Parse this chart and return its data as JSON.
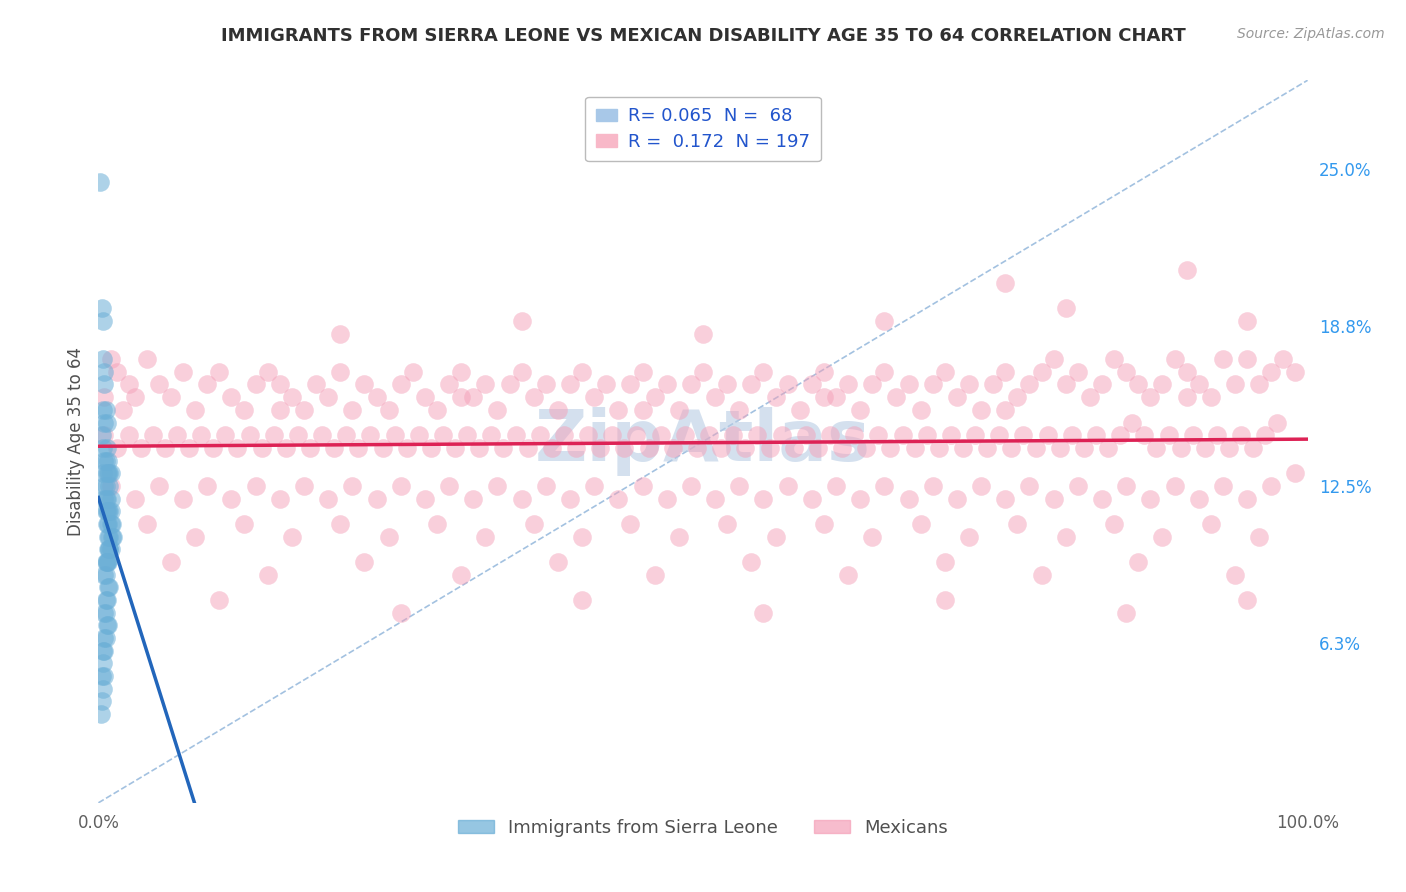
{
  "title": "IMMIGRANTS FROM SIERRA LEONE VS MEXICAN DISABILITY AGE 35 TO 64 CORRELATION CHART",
  "source_text": "Source: ZipAtlas.com",
  "ylabel": "Disability Age 35 to 64",
  "x_min": 0.0,
  "x_max": 1.0,
  "y_min": 0.0,
  "y_max": 0.285,
  "x_tick_labels": [
    "0.0%",
    "100.0%"
  ],
  "y_tick_labels_right": [
    "6.3%",
    "12.5%",
    "18.8%",
    "25.0%"
  ],
  "y_tick_vals_right": [
    0.063,
    0.125,
    0.188,
    0.25
  ],
  "legend_bottom": [
    "Immigrants from Sierra Leone",
    "Mexicans"
  ],
  "color_sierra": "#6aaed6",
  "color_mexican": "#f4a0b8",
  "trendline_sierra_color": "#2266bb",
  "trendline_mexican_color": "#dd2255",
  "diagonal_color": "#99bbdd",
  "background_color": "#ffffff",
  "grid_color": "#c8d4e8",
  "title_color": "#303030",
  "watermark_color": "#b8cce4",
  "sierra_leone_points": [
    [
      0.001,
      0.245
    ],
    [
      0.003,
      0.195
    ],
    [
      0.004,
      0.19
    ],
    [
      0.004,
      0.175
    ],
    [
      0.005,
      0.17
    ],
    [
      0.005,
      0.165
    ],
    [
      0.004,
      0.155
    ],
    [
      0.005,
      0.15
    ],
    [
      0.003,
      0.145
    ],
    [
      0.004,
      0.14
    ],
    [
      0.005,
      0.135
    ],
    [
      0.006,
      0.155
    ],
    [
      0.007,
      0.15
    ],
    [
      0.006,
      0.135
    ],
    [
      0.007,
      0.13
    ],
    [
      0.004,
      0.13
    ],
    [
      0.005,
      0.125
    ],
    [
      0.006,
      0.125
    ],
    [
      0.007,
      0.14
    ],
    [
      0.008,
      0.135
    ],
    [
      0.005,
      0.12
    ],
    [
      0.006,
      0.12
    ],
    [
      0.007,
      0.12
    ],
    [
      0.008,
      0.13
    ],
    [
      0.009,
      0.13
    ],
    [
      0.01,
      0.13
    ],
    [
      0.006,
      0.115
    ],
    [
      0.007,
      0.115
    ],
    [
      0.008,
      0.115
    ],
    [
      0.009,
      0.125
    ],
    [
      0.01,
      0.12
    ],
    [
      0.007,
      0.11
    ],
    [
      0.008,
      0.11
    ],
    [
      0.009,
      0.115
    ],
    [
      0.01,
      0.115
    ],
    [
      0.008,
      0.105
    ],
    [
      0.009,
      0.105
    ],
    [
      0.01,
      0.11
    ],
    [
      0.011,
      0.11
    ],
    [
      0.009,
      0.1
    ],
    [
      0.01,
      0.1
    ],
    [
      0.011,
      0.105
    ],
    [
      0.012,
      0.105
    ],
    [
      0.006,
      0.095
    ],
    [
      0.007,
      0.095
    ],
    [
      0.008,
      0.1
    ],
    [
      0.009,
      0.1
    ],
    [
      0.005,
      0.09
    ],
    [
      0.006,
      0.09
    ],
    [
      0.007,
      0.095
    ],
    [
      0.008,
      0.095
    ],
    [
      0.006,
      0.08
    ],
    [
      0.007,
      0.08
    ],
    [
      0.008,
      0.085
    ],
    [
      0.009,
      0.085
    ],
    [
      0.005,
      0.075
    ],
    [
      0.006,
      0.075
    ],
    [
      0.007,
      0.07
    ],
    [
      0.008,
      0.07
    ],
    [
      0.005,
      0.065
    ],
    [
      0.006,
      0.065
    ],
    [
      0.005,
      0.06
    ],
    [
      0.004,
      0.06
    ],
    [
      0.004,
      0.055
    ],
    [
      0.005,
      0.05
    ],
    [
      0.003,
      0.05
    ],
    [
      0.004,
      0.045
    ],
    [
      0.003,
      0.04
    ],
    [
      0.002,
      0.035
    ]
  ],
  "mexican_points": [
    [
      0.005,
      0.16
    ],
    [
      0.01,
      0.175
    ],
    [
      0.015,
      0.17
    ],
    [
      0.02,
      0.155
    ],
    [
      0.025,
      0.165
    ],
    [
      0.03,
      0.16
    ],
    [
      0.04,
      0.175
    ],
    [
      0.05,
      0.165
    ],
    [
      0.06,
      0.16
    ],
    [
      0.07,
      0.17
    ],
    [
      0.08,
      0.155
    ],
    [
      0.09,
      0.165
    ],
    [
      0.1,
      0.17
    ],
    [
      0.11,
      0.16
    ],
    [
      0.12,
      0.155
    ],
    [
      0.13,
      0.165
    ],
    [
      0.14,
      0.17
    ],
    [
      0.15,
      0.165
    ],
    [
      0.16,
      0.16
    ],
    [
      0.17,
      0.155
    ],
    [
      0.18,
      0.165
    ],
    [
      0.19,
      0.16
    ],
    [
      0.2,
      0.17
    ],
    [
      0.21,
      0.155
    ],
    [
      0.22,
      0.165
    ],
    [
      0.23,
      0.16
    ],
    [
      0.24,
      0.155
    ],
    [
      0.25,
      0.165
    ],
    [
      0.26,
      0.17
    ],
    [
      0.27,
      0.16
    ],
    [
      0.28,
      0.155
    ],
    [
      0.29,
      0.165
    ],
    [
      0.3,
      0.17
    ],
    [
      0.31,
      0.16
    ],
    [
      0.32,
      0.165
    ],
    [
      0.33,
      0.155
    ],
    [
      0.34,
      0.165
    ],
    [
      0.35,
      0.17
    ],
    [
      0.36,
      0.16
    ],
    [
      0.37,
      0.165
    ],
    [
      0.38,
      0.155
    ],
    [
      0.39,
      0.165
    ],
    [
      0.4,
      0.17
    ],
    [
      0.41,
      0.16
    ],
    [
      0.42,
      0.165
    ],
    [
      0.43,
      0.155
    ],
    [
      0.44,
      0.165
    ],
    [
      0.45,
      0.17
    ],
    [
      0.46,
      0.16
    ],
    [
      0.47,
      0.165
    ],
    [
      0.48,
      0.155
    ],
    [
      0.49,
      0.165
    ],
    [
      0.5,
      0.17
    ],
    [
      0.51,
      0.16
    ],
    [
      0.52,
      0.165
    ],
    [
      0.53,
      0.155
    ],
    [
      0.54,
      0.165
    ],
    [
      0.55,
      0.17
    ],
    [
      0.56,
      0.16
    ],
    [
      0.57,
      0.165
    ],
    [
      0.58,
      0.155
    ],
    [
      0.59,
      0.165
    ],
    [
      0.6,
      0.17
    ],
    [
      0.61,
      0.16
    ],
    [
      0.62,
      0.165
    ],
    [
      0.63,
      0.155
    ],
    [
      0.64,
      0.165
    ],
    [
      0.65,
      0.17
    ],
    [
      0.66,
      0.16
    ],
    [
      0.67,
      0.165
    ],
    [
      0.68,
      0.155
    ],
    [
      0.69,
      0.165
    ],
    [
      0.7,
      0.17
    ],
    [
      0.71,
      0.16
    ],
    [
      0.72,
      0.165
    ],
    [
      0.73,
      0.155
    ],
    [
      0.74,
      0.165
    ],
    [
      0.75,
      0.17
    ],
    [
      0.76,
      0.16
    ],
    [
      0.77,
      0.165
    ],
    [
      0.78,
      0.17
    ],
    [
      0.79,
      0.175
    ],
    [
      0.8,
      0.165
    ],
    [
      0.81,
      0.17
    ],
    [
      0.82,
      0.16
    ],
    [
      0.83,
      0.165
    ],
    [
      0.84,
      0.175
    ],
    [
      0.85,
      0.17
    ],
    [
      0.86,
      0.165
    ],
    [
      0.87,
      0.16
    ],
    [
      0.88,
      0.165
    ],
    [
      0.89,
      0.175
    ],
    [
      0.9,
      0.17
    ],
    [
      0.91,
      0.165
    ],
    [
      0.92,
      0.16
    ],
    [
      0.93,
      0.175
    ],
    [
      0.94,
      0.165
    ],
    [
      0.95,
      0.175
    ],
    [
      0.96,
      0.165
    ],
    [
      0.97,
      0.17
    ],
    [
      0.98,
      0.175
    ],
    [
      0.99,
      0.17
    ],
    [
      0.005,
      0.145
    ],
    [
      0.015,
      0.14
    ],
    [
      0.025,
      0.145
    ],
    [
      0.035,
      0.14
    ],
    [
      0.045,
      0.145
    ],
    [
      0.055,
      0.14
    ],
    [
      0.065,
      0.145
    ],
    [
      0.075,
      0.14
    ],
    [
      0.085,
      0.145
    ],
    [
      0.095,
      0.14
    ],
    [
      0.105,
      0.145
    ],
    [
      0.115,
      0.14
    ],
    [
      0.125,
      0.145
    ],
    [
      0.135,
      0.14
    ],
    [
      0.145,
      0.145
    ],
    [
      0.155,
      0.14
    ],
    [
      0.165,
      0.145
    ],
    [
      0.175,
      0.14
    ],
    [
      0.185,
      0.145
    ],
    [
      0.195,
      0.14
    ],
    [
      0.205,
      0.145
    ],
    [
      0.215,
      0.14
    ],
    [
      0.225,
      0.145
    ],
    [
      0.235,
      0.14
    ],
    [
      0.245,
      0.145
    ],
    [
      0.255,
      0.14
    ],
    [
      0.265,
      0.145
    ],
    [
      0.275,
      0.14
    ],
    [
      0.285,
      0.145
    ],
    [
      0.295,
      0.14
    ],
    [
      0.305,
      0.145
    ],
    [
      0.315,
      0.14
    ],
    [
      0.325,
      0.145
    ],
    [
      0.335,
      0.14
    ],
    [
      0.345,
      0.145
    ],
    [
      0.355,
      0.14
    ],
    [
      0.365,
      0.145
    ],
    [
      0.375,
      0.14
    ],
    [
      0.385,
      0.145
    ],
    [
      0.395,
      0.14
    ],
    [
      0.405,
      0.145
    ],
    [
      0.415,
      0.14
    ],
    [
      0.425,
      0.145
    ],
    [
      0.435,
      0.14
    ],
    [
      0.445,
      0.145
    ],
    [
      0.455,
      0.14
    ],
    [
      0.465,
      0.145
    ],
    [
      0.475,
      0.14
    ],
    [
      0.485,
      0.145
    ],
    [
      0.495,
      0.14
    ],
    [
      0.505,
      0.145
    ],
    [
      0.515,
      0.14
    ],
    [
      0.525,
      0.145
    ],
    [
      0.535,
      0.14
    ],
    [
      0.545,
      0.145
    ],
    [
      0.555,
      0.14
    ],
    [
      0.565,
      0.145
    ],
    [
      0.575,
      0.14
    ],
    [
      0.585,
      0.145
    ],
    [
      0.595,
      0.14
    ],
    [
      0.605,
      0.145
    ],
    [
      0.615,
      0.14
    ],
    [
      0.625,
      0.145
    ],
    [
      0.635,
      0.14
    ],
    [
      0.645,
      0.145
    ],
    [
      0.655,
      0.14
    ],
    [
      0.665,
      0.145
    ],
    [
      0.675,
      0.14
    ],
    [
      0.685,
      0.145
    ],
    [
      0.695,
      0.14
    ],
    [
      0.705,
      0.145
    ],
    [
      0.715,
      0.14
    ],
    [
      0.725,
      0.145
    ],
    [
      0.735,
      0.14
    ],
    [
      0.745,
      0.145
    ],
    [
      0.755,
      0.14
    ],
    [
      0.765,
      0.145
    ],
    [
      0.775,
      0.14
    ],
    [
      0.785,
      0.145
    ],
    [
      0.795,
      0.14
    ],
    [
      0.805,
      0.145
    ],
    [
      0.815,
      0.14
    ],
    [
      0.825,
      0.145
    ],
    [
      0.835,
      0.14
    ],
    [
      0.845,
      0.145
    ],
    [
      0.855,
      0.15
    ],
    [
      0.865,
      0.145
    ],
    [
      0.875,
      0.14
    ],
    [
      0.885,
      0.145
    ],
    [
      0.895,
      0.14
    ],
    [
      0.905,
      0.145
    ],
    [
      0.915,
      0.14
    ],
    [
      0.925,
      0.145
    ],
    [
      0.935,
      0.14
    ],
    [
      0.945,
      0.145
    ],
    [
      0.955,
      0.14
    ],
    [
      0.965,
      0.145
    ],
    [
      0.975,
      0.15
    ],
    [
      0.01,
      0.125
    ],
    [
      0.03,
      0.12
    ],
    [
      0.05,
      0.125
    ],
    [
      0.07,
      0.12
    ],
    [
      0.09,
      0.125
    ],
    [
      0.11,
      0.12
    ],
    [
      0.13,
      0.125
    ],
    [
      0.15,
      0.12
    ],
    [
      0.17,
      0.125
    ],
    [
      0.19,
      0.12
    ],
    [
      0.21,
      0.125
    ],
    [
      0.23,
      0.12
    ],
    [
      0.25,
      0.125
    ],
    [
      0.27,
      0.12
    ],
    [
      0.29,
      0.125
    ],
    [
      0.31,
      0.12
    ],
    [
      0.33,
      0.125
    ],
    [
      0.35,
      0.12
    ],
    [
      0.37,
      0.125
    ],
    [
      0.39,
      0.12
    ],
    [
      0.41,
      0.125
    ],
    [
      0.43,
      0.12
    ],
    [
      0.45,
      0.125
    ],
    [
      0.47,
      0.12
    ],
    [
      0.49,
      0.125
    ],
    [
      0.51,
      0.12
    ],
    [
      0.53,
      0.125
    ],
    [
      0.55,
      0.12
    ],
    [
      0.57,
      0.125
    ],
    [
      0.59,
      0.12
    ],
    [
      0.61,
      0.125
    ],
    [
      0.63,
      0.12
    ],
    [
      0.65,
      0.125
    ],
    [
      0.67,
      0.12
    ],
    [
      0.69,
      0.125
    ],
    [
      0.71,
      0.12
    ],
    [
      0.73,
      0.125
    ],
    [
      0.75,
      0.12
    ],
    [
      0.77,
      0.125
    ],
    [
      0.79,
      0.12
    ],
    [
      0.81,
      0.125
    ],
    [
      0.83,
      0.12
    ],
    [
      0.85,
      0.125
    ],
    [
      0.87,
      0.12
    ],
    [
      0.89,
      0.125
    ],
    [
      0.91,
      0.12
    ],
    [
      0.93,
      0.125
    ],
    [
      0.95,
      0.12
    ],
    [
      0.97,
      0.125
    ],
    [
      0.99,
      0.13
    ],
    [
      0.04,
      0.11
    ],
    [
      0.08,
      0.105
    ],
    [
      0.12,
      0.11
    ],
    [
      0.16,
      0.105
    ],
    [
      0.2,
      0.11
    ],
    [
      0.24,
      0.105
    ],
    [
      0.28,
      0.11
    ],
    [
      0.32,
      0.105
    ],
    [
      0.36,
      0.11
    ],
    [
      0.4,
      0.105
    ],
    [
      0.44,
      0.11
    ],
    [
      0.48,
      0.105
    ],
    [
      0.52,
      0.11
    ],
    [
      0.56,
      0.105
    ],
    [
      0.6,
      0.11
    ],
    [
      0.64,
      0.105
    ],
    [
      0.68,
      0.11
    ],
    [
      0.72,
      0.105
    ],
    [
      0.76,
      0.11
    ],
    [
      0.8,
      0.105
    ],
    [
      0.84,
      0.11
    ],
    [
      0.88,
      0.105
    ],
    [
      0.92,
      0.11
    ],
    [
      0.96,
      0.105
    ],
    [
      0.06,
      0.095
    ],
    [
      0.14,
      0.09
    ],
    [
      0.22,
      0.095
    ],
    [
      0.3,
      0.09
    ],
    [
      0.38,
      0.095
    ],
    [
      0.46,
      0.09
    ],
    [
      0.54,
      0.095
    ],
    [
      0.62,
      0.09
    ],
    [
      0.7,
      0.095
    ],
    [
      0.78,
      0.09
    ],
    [
      0.86,
      0.095
    ],
    [
      0.94,
      0.09
    ],
    [
      0.1,
      0.08
    ],
    [
      0.25,
      0.075
    ],
    [
      0.4,
      0.08
    ],
    [
      0.55,
      0.075
    ],
    [
      0.7,
      0.08
    ],
    [
      0.85,
      0.075
    ],
    [
      0.95,
      0.08
    ],
    [
      0.2,
      0.185
    ],
    [
      0.35,
      0.19
    ],
    [
      0.5,
      0.185
    ],
    [
      0.65,
      0.19
    ],
    [
      0.8,
      0.195
    ],
    [
      0.95,
      0.19
    ],
    [
      0.75,
      0.205
    ],
    [
      0.9,
      0.21
    ],
    [
      0.15,
      0.155
    ],
    [
      0.3,
      0.16
    ],
    [
      0.45,
      0.155
    ],
    [
      0.6,
      0.16
    ],
    [
      0.75,
      0.155
    ],
    [
      0.9,
      0.16
    ]
  ]
}
